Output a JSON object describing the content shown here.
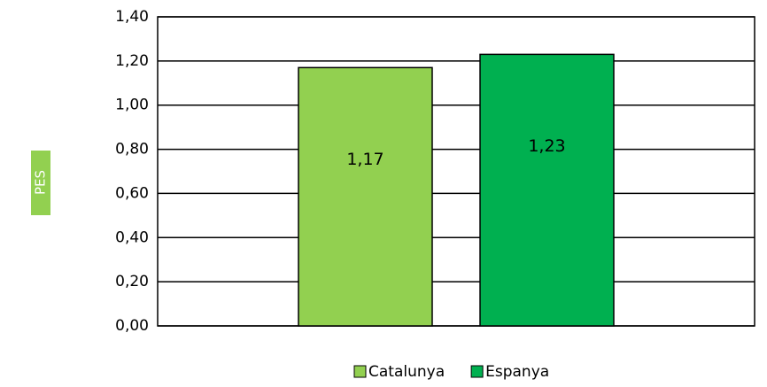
{
  "chart_data": {
    "type": "bar",
    "y_label": "PES",
    "categories": [
      null
    ],
    "series": [
      {
        "name": "Catalunya",
        "color": "#92d050",
        "values": [
          1.17
        ],
        "value_labels": [
          "1,17"
        ]
      },
      {
        "name": "Espanya",
        "color": "#00b050",
        "values": [
          1.23
        ],
        "value_labels": [
          "1,23"
        ]
      }
    ],
    "ylim": [
      0,
      1.4
    ],
    "yticks": [
      {
        "value": 0,
        "label": "0,00"
      },
      {
        "value": 0.2,
        "label": "0,20"
      },
      {
        "value": 0.4,
        "label": "0,40"
      },
      {
        "value": 0.6,
        "label": "0,60"
      },
      {
        "value": 0.8,
        "label": "0,80"
      },
      {
        "value": 1.0,
        "label": "1,00"
      },
      {
        "value": 1.2,
        "label": "1,20"
      },
      {
        "value": 1.4,
        "label": "1,40"
      }
    ],
    "grid": true,
    "legend": "bottom"
  }
}
